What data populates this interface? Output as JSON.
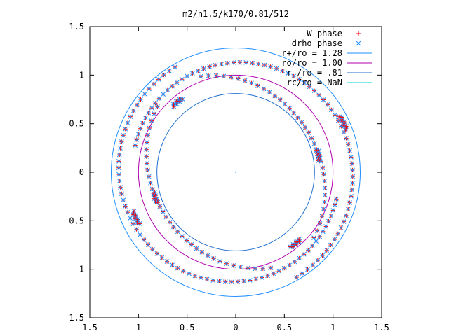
{
  "chart_data": {
    "type": "scatter",
    "title": "m2/n1.5/k170/0.81/512",
    "xlim": [
      -1.5,
      1.5
    ],
    "ylim": [
      -1.5,
      1.5
    ],
    "x_ticks": [
      -1.5,
      -1,
      -0.5,
      0,
      0.5,
      1,
      1.5
    ],
    "y_ticks": [
      -1.5,
      -1,
      -0.5,
      0,
      0.5,
      1,
      1.5
    ],
    "x_tick_labels": [
      "1.5",
      "1",
      "0.5",
      "0",
      "0.5",
      "1",
      "1.5"
    ],
    "y_tick_labels": [
      "1.5",
      "1",
      "0.5",
      "0",
      "0.5",
      "1",
      "1.5"
    ],
    "legend_position": "top-right",
    "point_series": [
      {
        "name": "W phase",
        "marker": "+",
        "color": "#ff0000"
      },
      {
        "name": "drho phase",
        "marker": "x",
        "color": "#1f8fff"
      }
    ],
    "circles": [
      {
        "name": "r+/ro = 1.28",
        "radius": 1.28,
        "color": "#1f8fff"
      },
      {
        "name": "ro/ro = 1.00",
        "radius": 1.0,
        "color": "#b000b0"
      },
      {
        "name": "r-/ro = .81",
        "radius": 0.81,
        "color": "#1f6fd0"
      },
      {
        "name": "rc/ro = NaN",
        "radius": null,
        "color": "#00d0d0"
      }
    ],
    "arms": [
      {
        "r_start": 1.25,
        "r_end": 1.07,
        "theta_start_deg": 120,
        "theta_end_deg": 345
      },
      {
        "r_start": 1.25,
        "r_end": 1.07,
        "theta_start_deg": 300,
        "theta_end_deg": 525
      }
    ],
    "clusters": [
      {
        "r": 0.93,
        "theta_deg": 130
      },
      {
        "r": 0.86,
        "theta_deg": 198
      },
      {
        "r": 1.12,
        "theta_deg": 205
      },
      {
        "r": 0.95,
        "theta_deg": 310
      },
      {
        "r": 0.86,
        "theta_deg": 12
      },
      {
        "r": 1.21,
        "theta_deg": 25
      }
    ]
  }
}
